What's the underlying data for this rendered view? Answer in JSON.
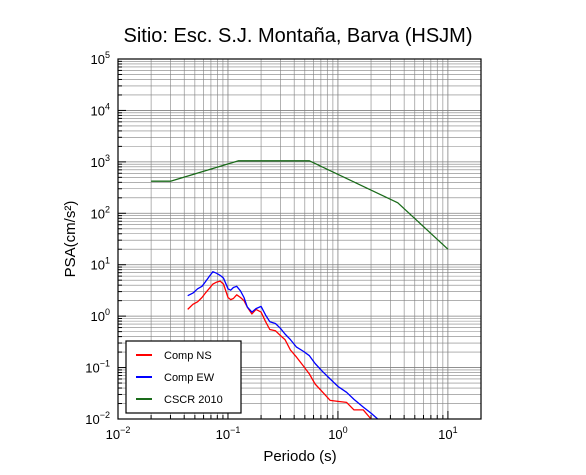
{
  "chart_data": {
    "type": "line",
    "title": "Sitio: Esc. S.J. Montaña, Barva (HSJM)",
    "xlabel": "Periodo (s)",
    "ylabel": "PSA(cm/s²)",
    "xscale": "log",
    "yscale": "log",
    "xlim": [
      0.01,
      20
    ],
    "ylim": [
      0.01,
      100000
    ],
    "grid": true,
    "legend_position": "bottom-left",
    "x_ticks": [
      {
        "base": "10",
        "exp": "−2",
        "value": 0.01
      },
      {
        "base": "10",
        "exp": "−1",
        "value": 0.1
      },
      {
        "base": "10",
        "exp": "0",
        "value": 1
      },
      {
        "base": "10",
        "exp": "1",
        "value": 10
      }
    ],
    "y_ticks": [
      {
        "base": "10",
        "exp": "−2",
        "value": 0.01
      },
      {
        "base": "10",
        "exp": "−1",
        "value": 0.1
      },
      {
        "base": "10",
        "exp": "0",
        "value": 1
      },
      {
        "base": "10",
        "exp": "1",
        "value": 10
      },
      {
        "base": "10",
        "exp": "2",
        "value": 100
      },
      {
        "base": "10",
        "exp": "3",
        "value": 1000
      },
      {
        "base": "10",
        "exp": "4",
        "value": 10000
      },
      {
        "base": "10",
        "exp": "5",
        "value": 100000
      }
    ],
    "series": [
      {
        "name": "Comp NS",
        "color": "#ff0000",
        "x": [
          0.043,
          0.048,
          0.053,
          0.058,
          0.063,
          0.068,
          0.073,
          0.079,
          0.085,
          0.091,
          0.1,
          0.106,
          0.112,
          0.12,
          0.13,
          0.14,
          0.15,
          0.165,
          0.18,
          0.2,
          0.22,
          0.24,
          0.27,
          0.3,
          0.33,
          0.37,
          0.42,
          0.48,
          0.55,
          0.62,
          0.72,
          0.85,
          1.0,
          1.2,
          1.4,
          1.7,
          2.0
        ],
        "y": [
          1.35,
          1.7,
          1.9,
          2.3,
          2.9,
          3.5,
          4.2,
          4.6,
          4.8,
          4.2,
          2.3,
          2.1,
          2.2,
          2.6,
          2.3,
          2.0,
          1.5,
          1.1,
          1.35,
          1.2,
          0.78,
          0.55,
          0.52,
          0.42,
          0.35,
          0.22,
          0.16,
          0.11,
          0.075,
          0.048,
          0.034,
          0.023,
          0.022,
          0.021,
          0.015,
          0.015,
          0.01
        ]
      },
      {
        "name": "Comp EW",
        "color": "#0000ff",
        "x": [
          0.043,
          0.048,
          0.053,
          0.058,
          0.063,
          0.068,
          0.073,
          0.079,
          0.085,
          0.091,
          0.1,
          0.106,
          0.112,
          0.12,
          0.13,
          0.14,
          0.15,
          0.165,
          0.18,
          0.2,
          0.22,
          0.24,
          0.27,
          0.3,
          0.33,
          0.37,
          0.42,
          0.48,
          0.55,
          0.62,
          0.72,
          0.85,
          1.0,
          1.2,
          1.4,
          1.7,
          2.0,
          2.3
        ],
        "y": [
          2.5,
          2.8,
          3.4,
          3.8,
          4.8,
          6.0,
          7.3,
          6.8,
          6.2,
          5.5,
          3.4,
          3.2,
          3.6,
          3.8,
          3.1,
          2.3,
          1.5,
          1.2,
          1.4,
          1.55,
          1.05,
          0.78,
          0.72,
          0.58,
          0.45,
          0.35,
          0.25,
          0.21,
          0.17,
          0.12,
          0.085,
          0.06,
          0.043,
          0.033,
          0.024,
          0.017,
          0.013,
          0.01
        ]
      },
      {
        "name": "CSCR 2010",
        "color": "#1a6b1a",
        "x": [
          0.02,
          0.03,
          0.125,
          0.55,
          3.5,
          10
        ],
        "y": [
          420,
          420,
          1050,
          1050,
          160,
          20
        ]
      }
    ]
  }
}
